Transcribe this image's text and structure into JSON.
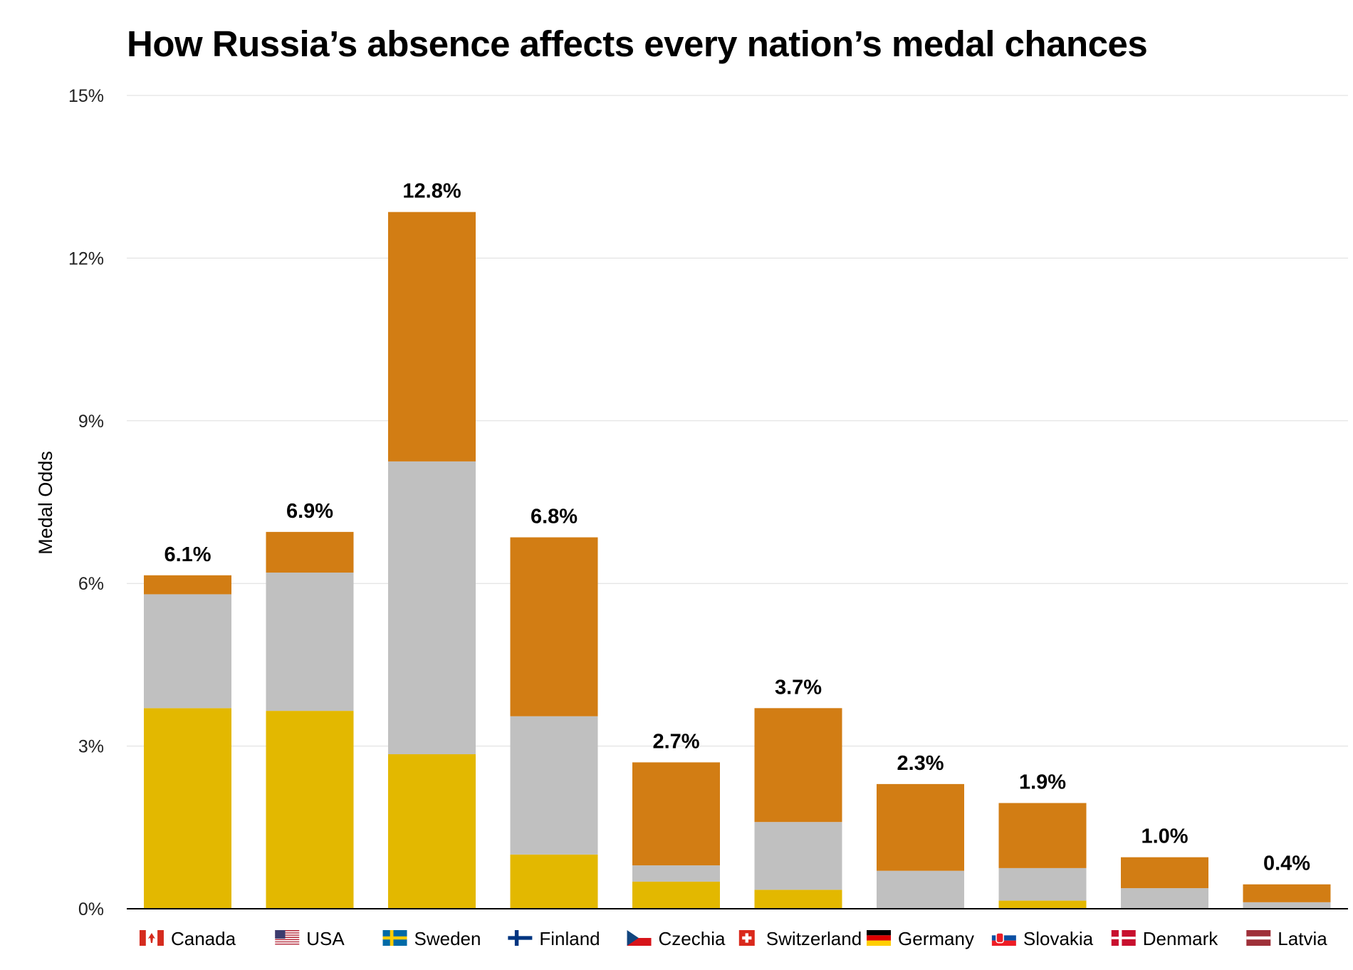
{
  "chart_data": {
    "type": "bar",
    "stacked": true,
    "title": "How Russia’s absence affects every nation’s medal chances",
    "ylabel": "Medal Odds",
    "ylim": [
      0,
      15
    ],
    "y_ticks": [
      "0%",
      "3%",
      "6%",
      "9%",
      "12%",
      "15%"
    ],
    "grid": true,
    "categories": [
      "Canada",
      "USA",
      "Sweden",
      "Finland",
      "Czechia",
      "Switzerland",
      "Germany",
      "Slovakia",
      "Denmark",
      "Latvia"
    ],
    "flag_icons": [
      "canada-flag-icon",
      "usa-flag-icon",
      "sweden-flag-icon",
      "finland-flag-icon",
      "czechia-flag-icon",
      "switzerland-flag-icon",
      "germany-flag-icon",
      "slovakia-flag-icon",
      "denmark-flag-icon",
      "latvia-flag-icon"
    ],
    "series": [
      {
        "color": "#E3B800",
        "values": [
          3.7,
          3.65,
          2.85,
          1.0,
          0.5,
          0.35,
          0.0,
          0.15,
          0.0,
          0.0
        ]
      },
      {
        "color": "#C0C0C0",
        "values": [
          2.1,
          2.55,
          5.4,
          2.55,
          0.3,
          1.25,
          0.7,
          0.6,
          0.38,
          0.12
        ]
      },
      {
        "color": "#D27D14",
        "values": [
          0.35,
          0.75,
          4.6,
          3.3,
          1.9,
          2.1,
          1.6,
          1.2,
          0.57,
          0.33
        ]
      }
    ],
    "totals": [
      6.15,
      6.95,
      12.85,
      6.85,
      2.7,
      3.7,
      2.3,
      1.95,
      0.95,
      0.45
    ],
    "total_labels": [
      "6.1%",
      "6.9%",
      "12.8%",
      "6.8%",
      "2.7%",
      "3.7%",
      "2.3%",
      "1.9%",
      "1.0%",
      "0.4%"
    ]
  }
}
